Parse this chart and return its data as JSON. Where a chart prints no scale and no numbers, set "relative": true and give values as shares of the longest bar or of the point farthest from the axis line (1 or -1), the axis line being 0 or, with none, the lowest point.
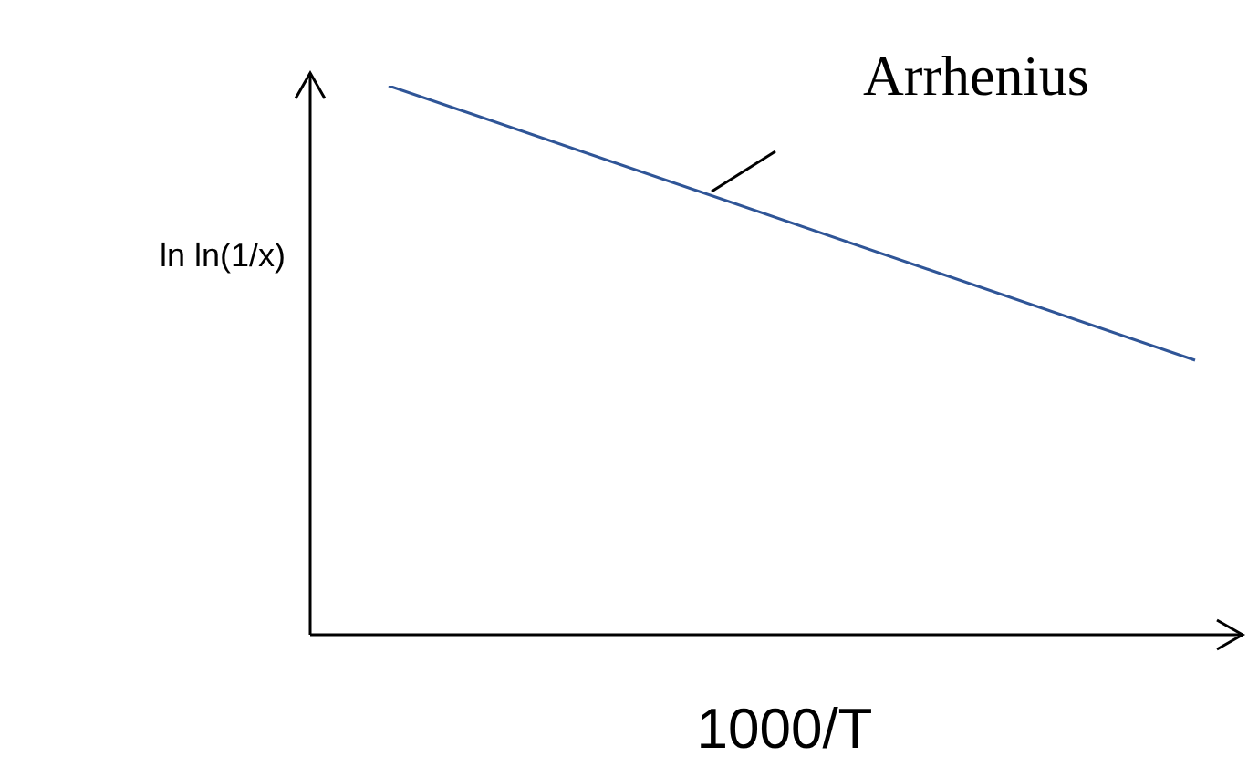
{
  "chart_data": {
    "type": "line",
    "relative": true,
    "categories": [
      null,
      null
    ],
    "series": [
      {
        "color": "#2f5597",
        "values": [
          1,
          0.5
        ]
      }
    ],
    "xlabel": "1000/T",
    "ylabel": "ln ln(1/x)",
    "annotations": [
      "Arrhenius"
    ],
    "line_style": "solid"
  }
}
